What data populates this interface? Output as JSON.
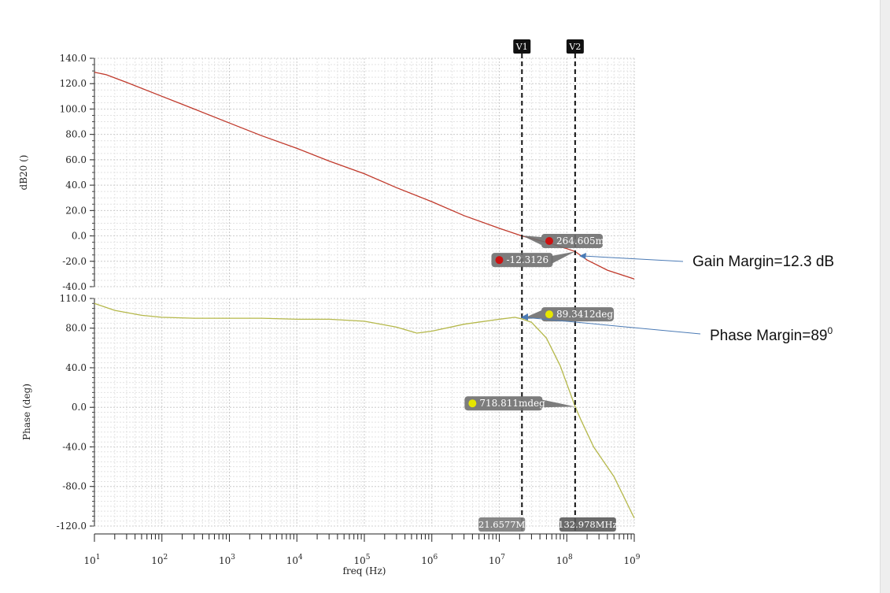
{
  "chart_data": [
    {
      "type": "line",
      "ylabel": "dB20 ()",
      "xlabel": "freq (Hz)",
      "x_scale": "log",
      "xlim": [
        10,
        1000000000
      ],
      "ylim": [
        -40,
        140
      ],
      "ytick_labels": [
        "140.0",
        "120.0",
        "100.0",
        "80.0",
        "60.0",
        "40.0",
        "20.0",
        "0.0",
        "-20.0",
        "-40.0"
      ],
      "ytick_values": [
        140,
        120,
        100,
        80,
        60,
        40,
        20,
        0,
        -20,
        -40
      ],
      "grid": true,
      "series": [
        {
          "color": "#c0392b",
          "x": [
            10,
            15,
            30,
            100,
            300,
            1000,
            3000,
            10000,
            30000,
            100000,
            300000,
            1000000,
            3000000,
            10000000,
            21657700,
            50000000,
            100000000,
            132978000,
            200000000,
            400000000,
            1000000000
          ],
          "y": [
            129,
            127,
            121,
            110,
            100,
            89,
            79,
            69,
            59,
            49,
            38,
            27,
            16,
            6,
            0,
            -5,
            -10,
            -12.3,
            -19,
            -27,
            -34
          ]
        }
      ]
    },
    {
      "type": "line",
      "ylabel": "Phase (deg)",
      "xlabel": "freq (Hz)",
      "x_scale": "log",
      "xlim": [
        10,
        1000000000
      ],
      "ylim": [
        -120,
        110
      ],
      "ytick_labels": [
        "110.0",
        "80.0",
        "40.0",
        "0.0",
        "-40.0",
        "-80.0",
        "-120.0"
      ],
      "ytick_values": [
        110,
        80,
        40,
        0,
        -40,
        -80,
        -120
      ],
      "grid": true,
      "series": [
        {
          "color": "#b5b84a",
          "x": [
            10,
            20,
            50,
            100,
            300,
            1000,
            3000,
            10000,
            30000,
            100000,
            300000,
            600000,
            1000000,
            3000000,
            10000000,
            17000000,
            21657700,
            30000000,
            50000000,
            80000000,
            132978000,
            160000000,
            250000000,
            500000000,
            1000000000
          ],
          "y": [
            105,
            98,
            93,
            91,
            90,
            90,
            90,
            89,
            89,
            87,
            81,
            75,
            77,
            84,
            89,
            91,
            89.3,
            86,
            70,
            42,
            0.7,
            -12,
            -40,
            -70,
            -112
          ]
        }
      ]
    }
  ],
  "x_tick_labels": [
    "10",
    "10",
    "10",
    "10",
    "10",
    "10",
    "10",
    "10",
    "10"
  ],
  "x_tick_exponents": [
    "1",
    "2",
    "3",
    "4",
    "5",
    "6",
    "7",
    "8",
    "9"
  ],
  "x_tick_values": [
    10,
    100,
    1000,
    10000,
    100000,
    1000000,
    10000000,
    100000000,
    1000000000
  ],
  "x_axis_label": "freq (Hz)",
  "cursors": [
    {
      "label": "V1",
      "freq": 21657700,
      "readout": "21.6577M"
    },
    {
      "label": "V2",
      "freq": 132978000,
      "readout": "132.978MHz"
    }
  ],
  "markers": [
    {
      "text": "264.605m",
      "panel": 0,
      "freq": 21657700,
      "value": 0.264605,
      "dot_color": "#cc1111",
      "dot_freq": 55000000,
      "dot_value": -4
    },
    {
      "text": "-12.3126",
      "panel": 0,
      "freq": 132978000,
      "value": -12.3126,
      "dot_color": "#cc1111",
      "dot_freq": 10000000,
      "dot_value": -19
    },
    {
      "text": "89.3412deg",
      "panel": 1,
      "freq": 21657700,
      "value": 89.3412,
      "dot_color": "#e6e600",
      "dot_freq": 55000000,
      "dot_value": 94
    },
    {
      "text": "718.811mdeg",
      "panel": 1,
      "freq": 132978000,
      "value": 0.718811,
      "dot_color": "#e6e600",
      "dot_freq": 4000000,
      "dot_value": 4
    }
  ],
  "annotations": {
    "gain_margin": "Gain Margin=12.3 dB",
    "phase_margin_text": "Phase Margin=89",
    "phase_margin_sup": "0",
    "arrow_color": "#4a7ab5"
  }
}
